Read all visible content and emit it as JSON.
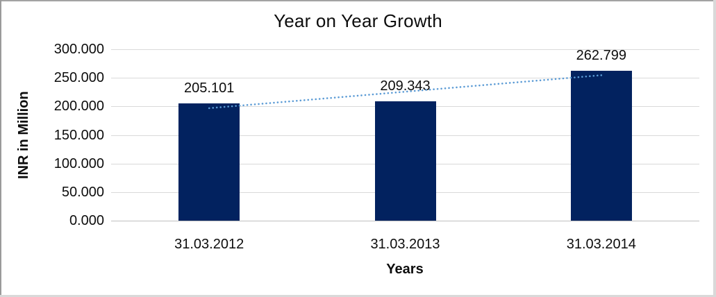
{
  "chart_data": {
    "type": "bar",
    "title": "Year on Year Growth",
    "xlabel": "Years",
    "ylabel": "INR in Million",
    "categories": [
      "31.03.2012",
      "31.03.2013",
      "31.03.2014"
    ],
    "values": [
      205.101,
      209.343,
      262.799
    ],
    "data_labels": [
      "205.101",
      "209.343",
      "262.799"
    ],
    "ylim": [
      0,
      300
    ],
    "ytick_interval": 50,
    "ytick_labels": [
      "0.000",
      "50.000",
      "100.000",
      "150.000",
      "200.000",
      "250.000",
      "300.000"
    ],
    "grid": true,
    "legend": false,
    "bar_color": "#02225f",
    "gridline_color": "#d9d9d9",
    "axis_line_color": "#bfbfbf",
    "text_color": "#0d0d0d",
    "trendline": {
      "type": "linear",
      "style": "dotted",
      "color": "#5b9bd5"
    }
  }
}
